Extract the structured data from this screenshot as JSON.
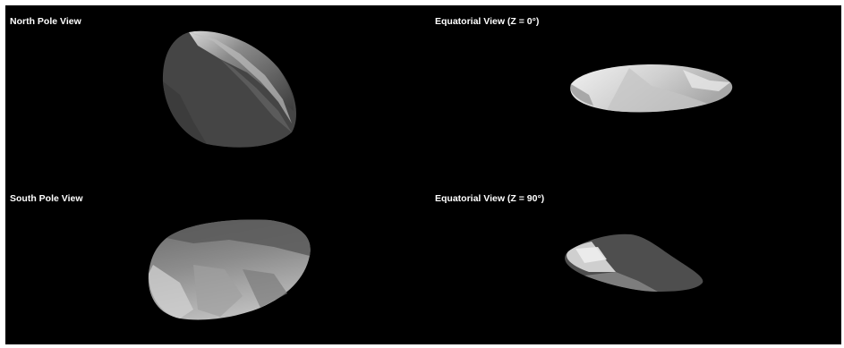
{
  "views": {
    "north_pole": {
      "label": "North Pole View"
    },
    "equatorial_z0": {
      "label": "Equatorial View (Z = 0°)"
    },
    "south_pole": {
      "label": "South Pole View"
    },
    "equatorial_z90": {
      "label": "Equatorial View (Z = 90°)"
    }
  },
  "colors": {
    "background": "#000000",
    "label": "#ffffff",
    "shape_dark": "#4a4a4a",
    "shape_mid": "#7a7a7a",
    "shape_light": "#dcdcdc"
  }
}
